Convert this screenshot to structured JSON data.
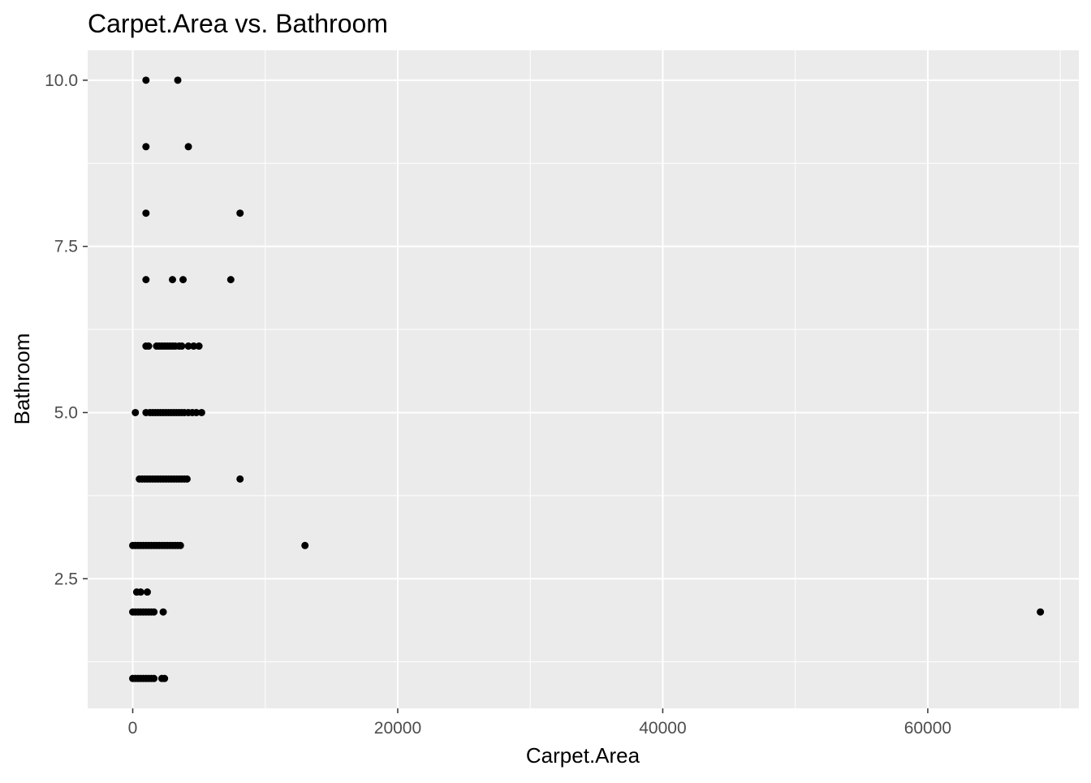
{
  "chart_data": {
    "type": "scatter",
    "title": "Carpet.Area vs. Bathroom",
    "xlabel": "Carpet.Area",
    "ylabel": "Bathroom",
    "xlim": [
      -3400,
      71400
    ],
    "ylim": [
      0.55,
      10.45
    ],
    "x_ticks": [
      {
        "value": 0,
        "label": "0"
      },
      {
        "value": 20000,
        "label": "20000"
      },
      {
        "value": 40000,
        "label": "40000"
      },
      {
        "value": 60000,
        "label": "60000"
      }
    ],
    "x_minor": [
      10000,
      30000,
      50000,
      70000
    ],
    "y_ticks": [
      {
        "value": 2.5,
        "label": "2.5"
      },
      {
        "value": 5.0,
        "label": "5.0"
      },
      {
        "value": 7.5,
        "label": "7.5"
      },
      {
        "value": 10.0,
        "label": "10.0"
      }
    ],
    "y_minor": [
      1.25,
      3.75,
      6.25,
      8.75
    ],
    "grid": true,
    "colors": {
      "panel": "#ebebeb",
      "grid": "#ffffff",
      "point": "#000000"
    },
    "points": [
      {
        "x": 1000,
        "y": 10
      },
      {
        "x": 3400,
        "y": 10
      },
      {
        "x": 1000,
        "y": 9
      },
      {
        "x": 4200,
        "y": 9
      },
      {
        "x": 1000,
        "y": 8
      },
      {
        "x": 8100,
        "y": 8
      },
      {
        "x": 1000,
        "y": 7
      },
      {
        "x": 3000,
        "y": 7
      },
      {
        "x": 3800,
        "y": 7
      },
      {
        "x": 7400,
        "y": 7
      },
      {
        "x": 1000,
        "y": 6
      },
      {
        "x": 1200,
        "y": 6
      },
      {
        "x": 1800,
        "y": 6
      },
      {
        "x": 2000,
        "y": 6
      },
      {
        "x": 2200,
        "y": 6
      },
      {
        "x": 2400,
        "y": 6
      },
      {
        "x": 2600,
        "y": 6
      },
      {
        "x": 2800,
        "y": 6
      },
      {
        "x": 3000,
        "y": 6
      },
      {
        "x": 3200,
        "y": 6
      },
      {
        "x": 3500,
        "y": 6
      },
      {
        "x": 3700,
        "y": 6
      },
      {
        "x": 4200,
        "y": 6
      },
      {
        "x": 4600,
        "y": 6
      },
      {
        "x": 5000,
        "y": 6
      },
      {
        "x": 200,
        "y": 5
      },
      {
        "x": 1000,
        "y": 5
      },
      {
        "x": 1300,
        "y": 5
      },
      {
        "x": 1500,
        "y": 5
      },
      {
        "x": 1700,
        "y": 5
      },
      {
        "x": 1900,
        "y": 5
      },
      {
        "x": 2100,
        "y": 5
      },
      {
        "x": 2300,
        "y": 5
      },
      {
        "x": 2500,
        "y": 5
      },
      {
        "x": 2700,
        "y": 5
      },
      {
        "x": 2900,
        "y": 5
      },
      {
        "x": 3100,
        "y": 5
      },
      {
        "x": 3300,
        "y": 5
      },
      {
        "x": 3500,
        "y": 5
      },
      {
        "x": 3700,
        "y": 5
      },
      {
        "x": 3900,
        "y": 5
      },
      {
        "x": 4200,
        "y": 5
      },
      {
        "x": 4500,
        "y": 5
      },
      {
        "x": 4800,
        "y": 5
      },
      {
        "x": 5200,
        "y": 5
      },
      {
        "x": 500,
        "y": 4
      },
      {
        "x": 700,
        "y": 4
      },
      {
        "x": 900,
        "y": 4
      },
      {
        "x": 1100,
        "y": 4
      },
      {
        "x": 1300,
        "y": 4
      },
      {
        "x": 1500,
        "y": 4
      },
      {
        "x": 1700,
        "y": 4
      },
      {
        "x": 1900,
        "y": 4
      },
      {
        "x": 2100,
        "y": 4
      },
      {
        "x": 2300,
        "y": 4
      },
      {
        "x": 2500,
        "y": 4
      },
      {
        "x": 2700,
        "y": 4
      },
      {
        "x": 2900,
        "y": 4
      },
      {
        "x": 3100,
        "y": 4
      },
      {
        "x": 3300,
        "y": 4
      },
      {
        "x": 3500,
        "y": 4
      },
      {
        "x": 3700,
        "y": 4
      },
      {
        "x": 3900,
        "y": 4
      },
      {
        "x": 4100,
        "y": 4
      },
      {
        "x": 8100,
        "y": 4
      },
      {
        "x": 0,
        "y": 3
      },
      {
        "x": 200,
        "y": 3
      },
      {
        "x": 400,
        "y": 3
      },
      {
        "x": 600,
        "y": 3
      },
      {
        "x": 800,
        "y": 3
      },
      {
        "x": 1000,
        "y": 3
      },
      {
        "x": 1200,
        "y": 3
      },
      {
        "x": 1400,
        "y": 3
      },
      {
        "x": 1600,
        "y": 3
      },
      {
        "x": 1800,
        "y": 3
      },
      {
        "x": 2000,
        "y": 3
      },
      {
        "x": 2200,
        "y": 3
      },
      {
        "x": 2400,
        "y": 3
      },
      {
        "x": 2600,
        "y": 3
      },
      {
        "x": 2800,
        "y": 3
      },
      {
        "x": 3000,
        "y": 3
      },
      {
        "x": 3200,
        "y": 3
      },
      {
        "x": 3400,
        "y": 3
      },
      {
        "x": 3600,
        "y": 3
      },
      {
        "x": 13000,
        "y": 3
      },
      {
        "x": 300,
        "y": 2.3
      },
      {
        "x": 600,
        "y": 2.3
      },
      {
        "x": 1100,
        "y": 2.3
      },
      {
        "x": 0,
        "y": 2
      },
      {
        "x": 200,
        "y": 2
      },
      {
        "x": 400,
        "y": 2
      },
      {
        "x": 600,
        "y": 2
      },
      {
        "x": 800,
        "y": 2
      },
      {
        "x": 1000,
        "y": 2
      },
      {
        "x": 1200,
        "y": 2
      },
      {
        "x": 1400,
        "y": 2
      },
      {
        "x": 1600,
        "y": 2
      },
      {
        "x": 2300,
        "y": 2
      },
      {
        "x": 68500,
        "y": 2
      },
      {
        "x": 0,
        "y": 1
      },
      {
        "x": 200,
        "y": 1
      },
      {
        "x": 400,
        "y": 1
      },
      {
        "x": 600,
        "y": 1
      },
      {
        "x": 800,
        "y": 1
      },
      {
        "x": 1000,
        "y": 1
      },
      {
        "x": 1200,
        "y": 1
      },
      {
        "x": 1400,
        "y": 1
      },
      {
        "x": 1600,
        "y": 1
      },
      {
        "x": 2200,
        "y": 1
      },
      {
        "x": 2400,
        "y": 1
      }
    ]
  }
}
